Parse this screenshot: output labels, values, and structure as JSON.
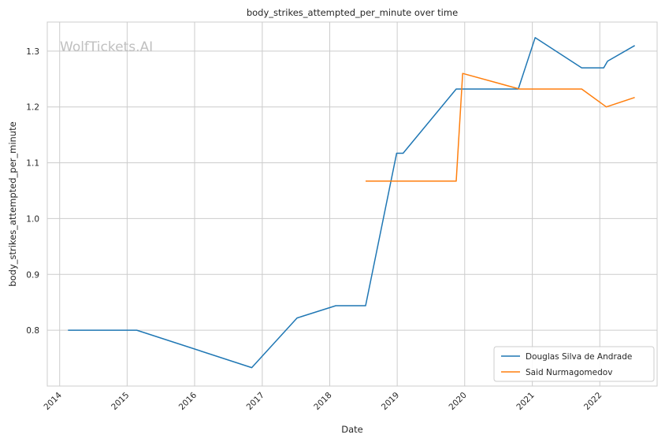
{
  "chart_data": {
    "type": "line",
    "title": "body_strikes_attempted_per_minute over time",
    "xlabel": "Date",
    "ylabel": "body_strikes_attempted_per_minute",
    "watermark": "WolfTickets.AI",
    "x_ticks": [
      "2014",
      "2015",
      "2016",
      "2017",
      "2018",
      "2019",
      "2020",
      "2021",
      "2022"
    ],
    "y_ticks": [
      "0.8",
      "0.9",
      "1.0",
      "1.1",
      "1.2",
      "1.3"
    ],
    "xlim": [
      "2013-10-26",
      "2022-11-07"
    ],
    "ylim": [
      0.7,
      1.352
    ],
    "grid": true,
    "legend_position": "lower-right",
    "series": [
      {
        "name": "Douglas Silva de Andrade",
        "color": "#1f77b4",
        "points": [
          [
            "2014-02-15",
            0.8
          ],
          [
            "2015-02-22",
            0.8
          ],
          [
            "2016-11-05",
            0.733
          ],
          [
            "2017-07-08",
            0.822
          ],
          [
            "2018-02-03",
            0.844
          ],
          [
            "2018-07-14",
            0.844
          ],
          [
            "2018-12-29",
            1.117
          ],
          [
            "2019-02-02",
            1.117
          ],
          [
            "2019-11-16",
            1.232
          ],
          [
            "2020-10-17",
            1.232
          ],
          [
            "2021-01-16",
            1.324
          ],
          [
            "2021-09-25",
            1.27
          ],
          [
            "2022-01-22",
            1.27
          ],
          [
            "2022-02-12",
            1.282
          ],
          [
            "2022-07-09",
            1.31
          ]
        ]
      },
      {
        "name": "Said Nurmagomedov",
        "color": "#ff7f0e",
        "points": [
          [
            "2018-07-14",
            1.067
          ],
          [
            "2019-11-16",
            1.067
          ],
          [
            "2019-12-21",
            1.26
          ],
          [
            "2020-10-24",
            1.232
          ],
          [
            "2021-09-25",
            1.232
          ],
          [
            "2022-02-05",
            1.2
          ],
          [
            "2022-07-09",
            1.217
          ]
        ]
      }
    ]
  }
}
